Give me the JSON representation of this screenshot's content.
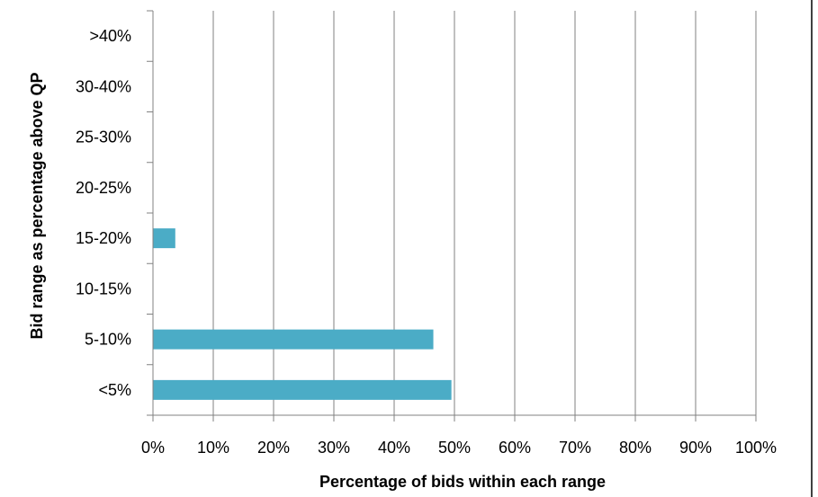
{
  "chart_data": {
    "type": "bar",
    "orientation": "horizontal",
    "categories": [
      "<5%",
      "5-10%",
      "10-15%",
      "15-20%",
      "20-25%",
      "25-30%",
      "30-40%",
      ">40%"
    ],
    "values": [
      49.5,
      46.5,
      0,
      3.7,
      0,
      0,
      0,
      0
    ],
    "value_unit": "%",
    "xlabel": "Percentage of bids within each range",
    "ylabel": "Bid range as percentage above QP",
    "xlim": [
      0,
      100
    ],
    "xticks": [
      "0%",
      "10%",
      "20%",
      "30%",
      "40%",
      "50%",
      "60%",
      "70%",
      "80%",
      "90%",
      "100%"
    ],
    "grid": "vertical",
    "legend": "none",
    "bar_color": "#4BACC6"
  }
}
